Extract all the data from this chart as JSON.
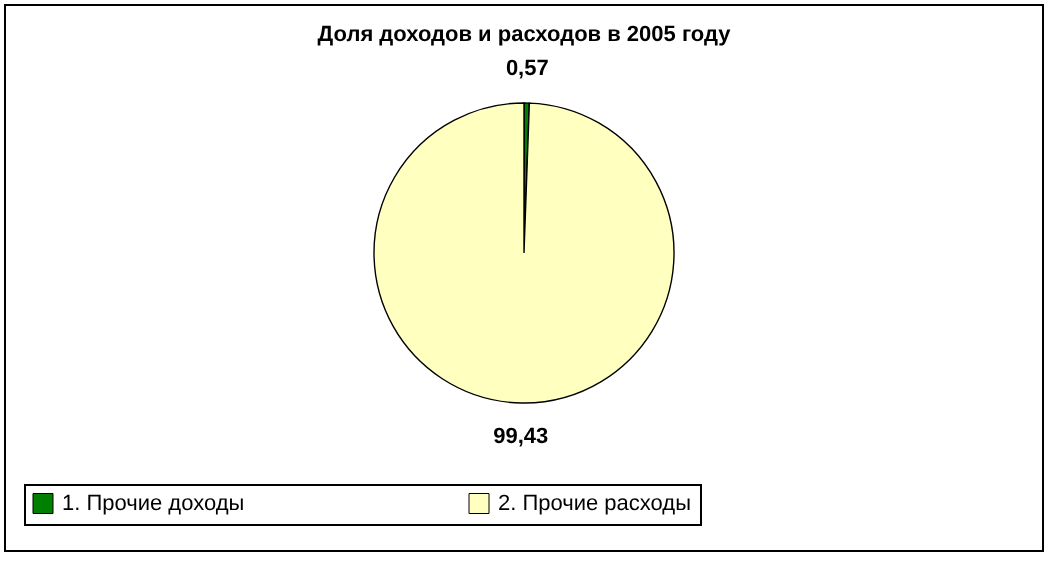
{
  "chart_data": {
    "type": "pie",
    "title": "Доля доходов и расходов в 2005 году",
    "categories": [
      "1. Прочие доходы",
      "2. Прочие расходы"
    ],
    "values": [
      0.57,
      99.43
    ],
    "colors": [
      "#008000",
      "#ffffc0"
    ],
    "value_labels": [
      "0,57",
      "99,43"
    ],
    "legend": "bottom"
  }
}
